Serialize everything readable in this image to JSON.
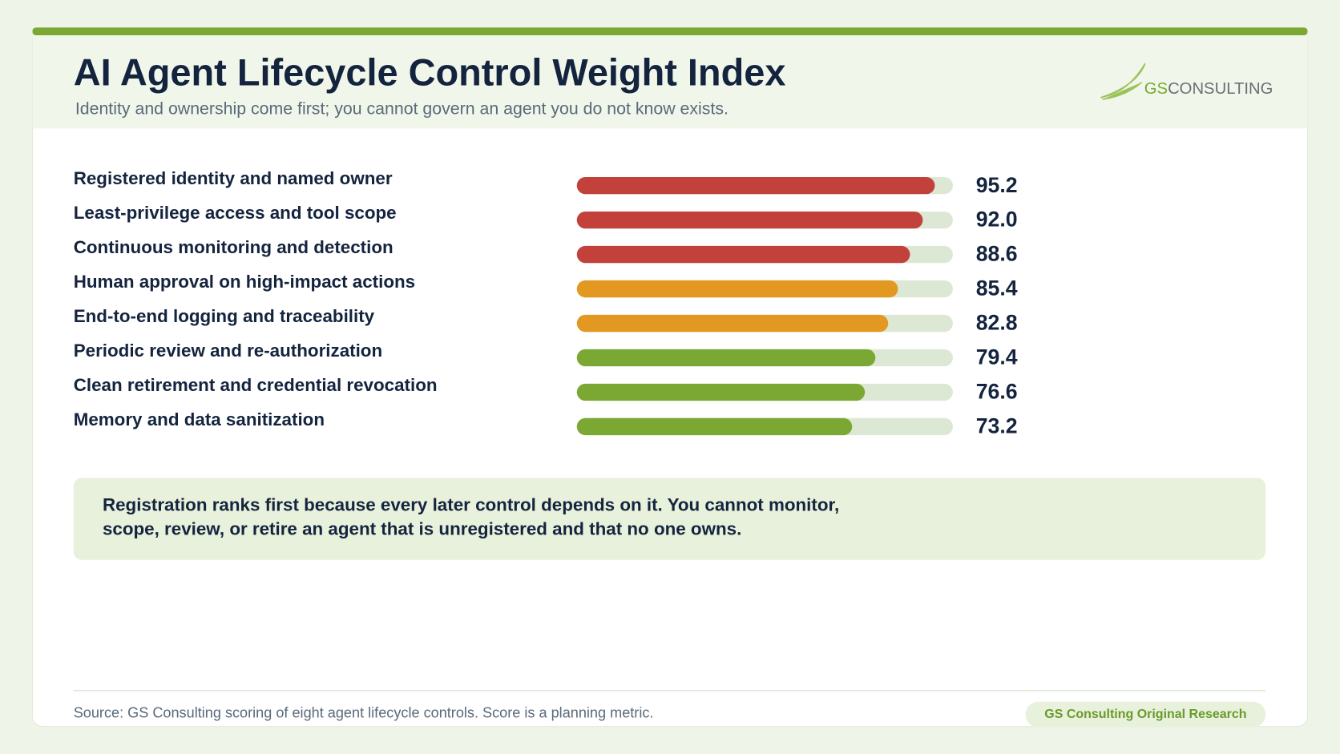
{
  "chart_data": {
    "type": "bar",
    "orientation": "horizontal",
    "title": "AI Agent Lifecycle Control Weight Index",
    "subtitle": "Identity and ownership come first; you cannot govern an agent you do not know exists.",
    "categories": [
      "Registered identity and named owner",
      "Least-privilege access and tool scope",
      "Continuous monitoring and detection",
      "Human approval on high-impact actions",
      "End-to-end logging and traceability",
      "Periodic review and re-authorization",
      "Clean retirement and credential revocation",
      "Memory and data sanitization"
    ],
    "values": [
      95.2,
      92.0,
      88.6,
      85.4,
      82.8,
      79.4,
      76.6,
      73.2
    ],
    "value_labels": [
      "95.2",
      "92.0",
      "88.6",
      "85.4",
      "82.8",
      "79.4",
      "76.6",
      "73.2"
    ],
    "colors": [
      "#c2423b",
      "#c2423b",
      "#c2423b",
      "#e39821",
      "#e39821",
      "#7aa832",
      "#7aa832",
      "#7aa832"
    ],
    "xlim": [
      0,
      100
    ]
  },
  "logo": {
    "primary": "GS",
    "secondary": "CONSULTING"
  },
  "note": {
    "lines": [
      "Registration ranks first because every later control depends on it. You cannot monitor,",
      "scope, review, or retire an agent that is unregistered and that no one owns."
    ]
  },
  "footer": {
    "source": "Source: GS Consulting scoring of eight agent lifecycle controls. Score is a planning metric.",
    "badge": "GS Consulting Original Research"
  }
}
